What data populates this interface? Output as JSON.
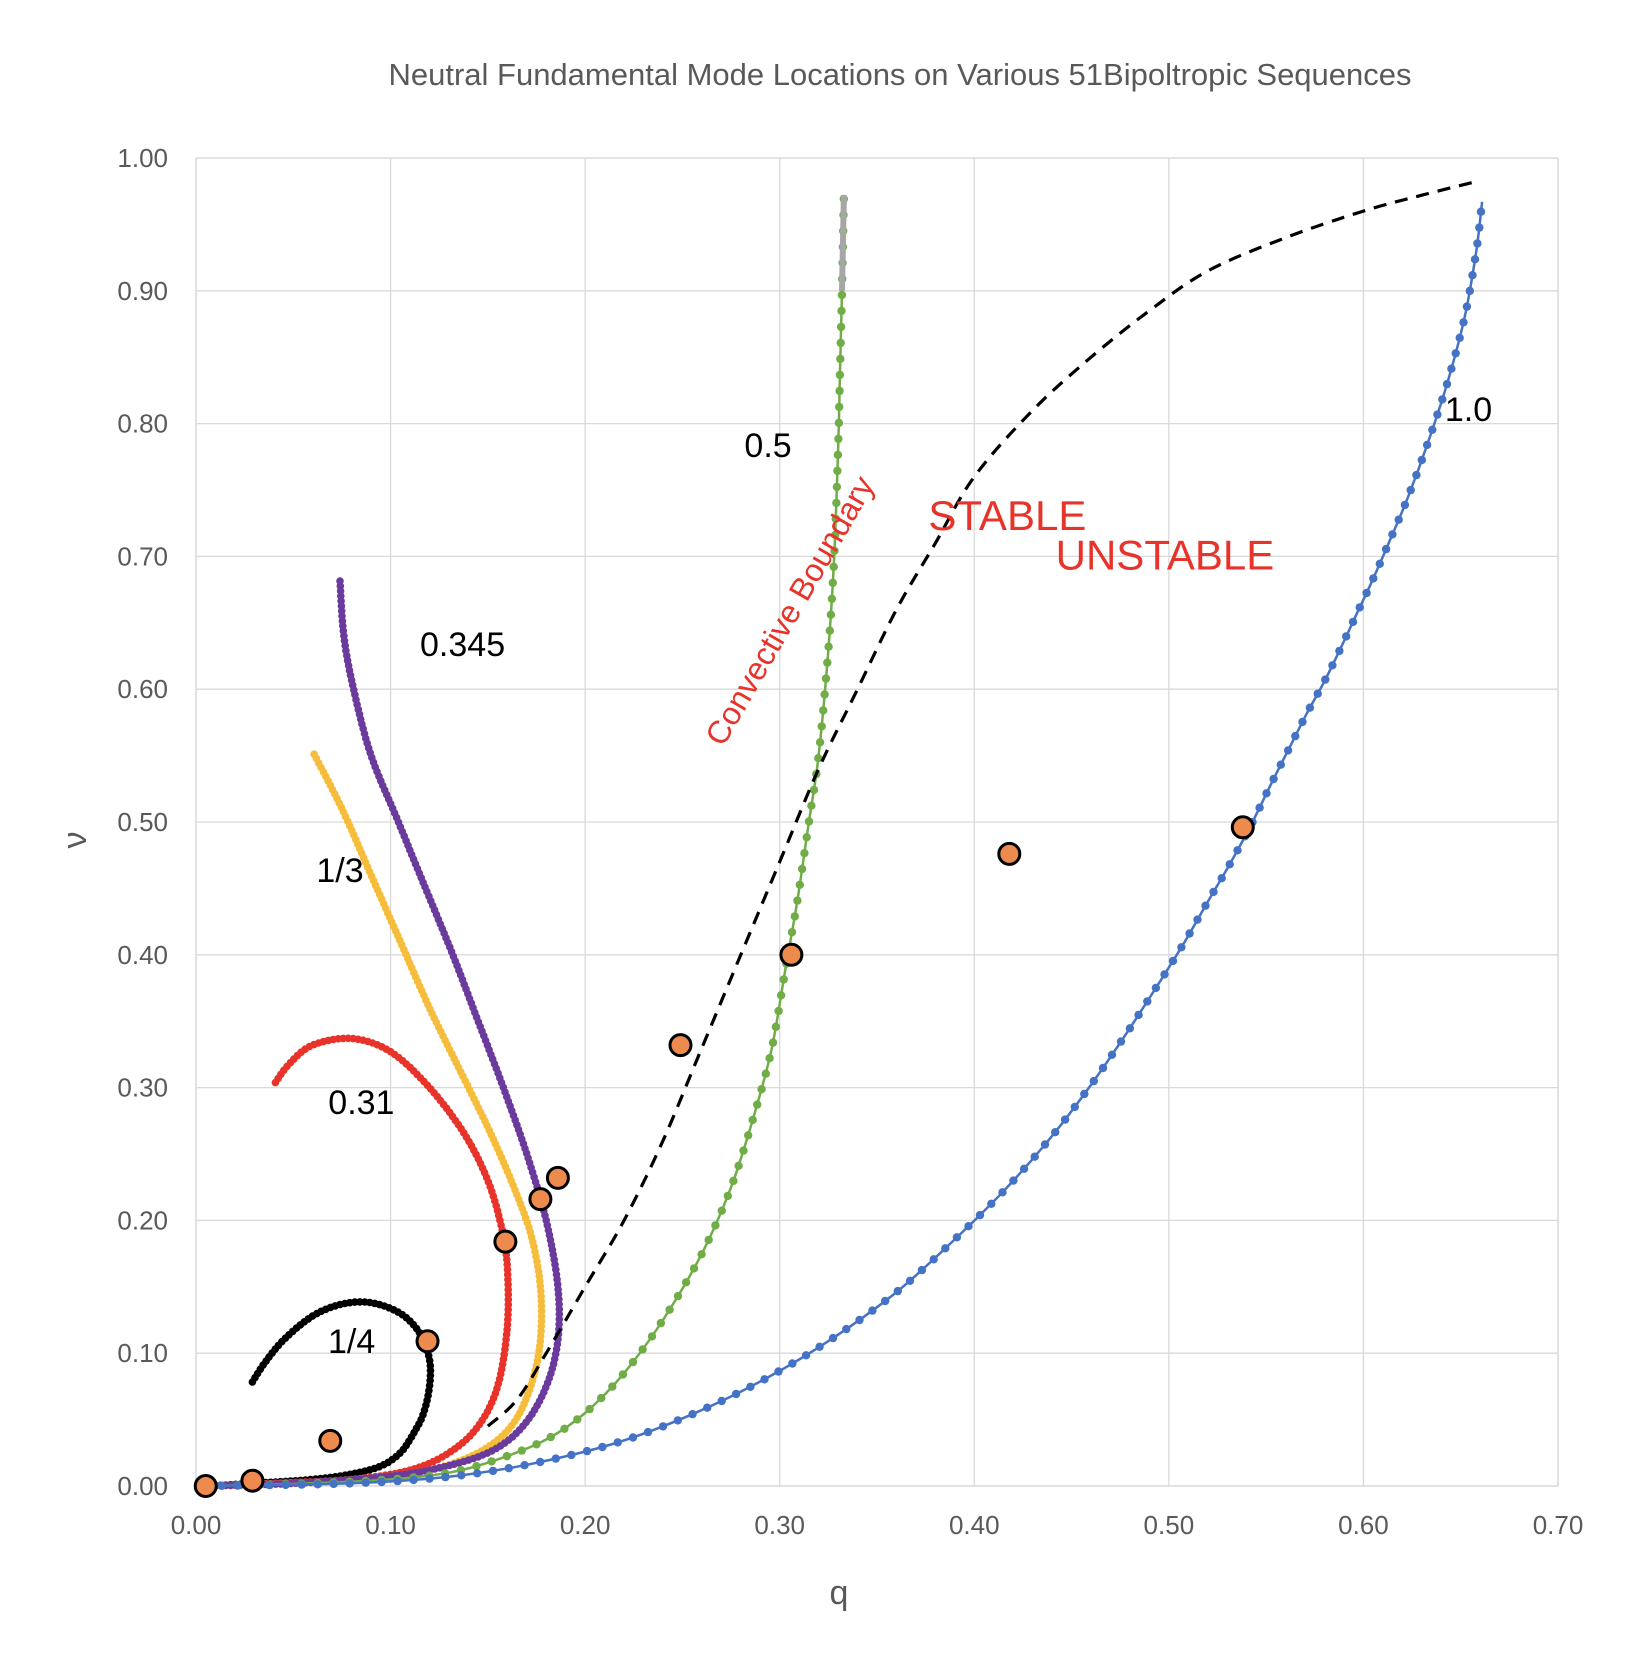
{
  "chart_data": {
    "type": "scatter",
    "title": "Neutral Fundamental Mode Locations on Various 51Bipoltropic Sequences",
    "xlabel": "q",
    "ylabel": "ν",
    "xlim": [
      0,
      0.7
    ],
    "ylim": [
      0,
      1.0
    ],
    "x_ticks": [
      "0.00",
      "0.10",
      "0.20",
      "0.30",
      "0.40",
      "0.50",
      "0.60",
      "0.70"
    ],
    "y_ticks": [
      "0.00",
      "0.10",
      "0.20",
      "0.30",
      "0.40",
      "0.50",
      "0.60",
      "0.70",
      "0.80",
      "0.90",
      "1.00"
    ],
    "grid": true,
    "series": [
      {
        "name": "1/4",
        "color": "#000000",
        "style": "dense-markers",
        "points": [
          [
            0.005,
            0.0
          ],
          [
            0.03,
            0.002
          ],
          [
            0.06,
            0.005
          ],
          [
            0.08,
            0.009
          ],
          [
            0.095,
            0.015
          ],
          [
            0.105,
            0.025
          ],
          [
            0.112,
            0.04
          ],
          [
            0.117,
            0.055
          ],
          [
            0.12,
            0.075
          ],
          [
            0.12,
            0.095
          ],
          [
            0.115,
            0.115
          ],
          [
            0.105,
            0.13
          ],
          [
            0.09,
            0.138
          ],
          [
            0.075,
            0.137
          ],
          [
            0.06,
            0.128
          ],
          [
            0.045,
            0.11
          ],
          [
            0.035,
            0.092
          ],
          [
            0.028,
            0.076
          ]
        ]
      },
      {
        "name": "0.31",
        "color": "#e8332a",
        "style": "dense-markers",
        "points": [
          [
            0.005,
            0.0
          ],
          [
            0.04,
            0.002
          ],
          [
            0.08,
            0.005
          ],
          [
            0.11,
            0.012
          ],
          [
            0.13,
            0.025
          ],
          [
            0.145,
            0.045
          ],
          [
            0.155,
            0.075
          ],
          [
            0.16,
            0.12
          ],
          [
            0.16,
            0.165
          ],
          [
            0.157,
            0.195
          ],
          [
            0.15,
            0.23
          ],
          [
            0.138,
            0.265
          ],
          [
            0.12,
            0.3
          ],
          [
            0.1,
            0.327
          ],
          [
            0.08,
            0.337
          ],
          [
            0.06,
            0.332
          ],
          [
            0.048,
            0.318
          ],
          [
            0.04,
            0.302
          ]
        ]
      },
      {
        "name": "1/3",
        "color": "#f5bd3b",
        "style": "dense-markers",
        "points": [
          [
            0.005,
            0.0
          ],
          [
            0.05,
            0.002
          ],
          [
            0.09,
            0.006
          ],
          [
            0.12,
            0.012
          ],
          [
            0.145,
            0.025
          ],
          [
            0.162,
            0.045
          ],
          [
            0.172,
            0.075
          ],
          [
            0.177,
            0.11
          ],
          [
            0.177,
            0.15
          ],
          [
            0.172,
            0.19
          ],
          [
            0.162,
            0.23
          ],
          [
            0.15,
            0.27
          ],
          [
            0.135,
            0.315
          ],
          [
            0.12,
            0.36
          ],
          [
            0.105,
            0.41
          ],
          [
            0.09,
            0.46
          ],
          [
            0.075,
            0.51
          ],
          [
            0.06,
            0.553
          ]
        ]
      },
      {
        "name": "0.345",
        "color": "#6a3a9c",
        "style": "dense-markers",
        "points": [
          [
            0.005,
            0.0
          ],
          [
            0.05,
            0.002
          ],
          [
            0.09,
            0.006
          ],
          [
            0.12,
            0.012
          ],
          [
            0.15,
            0.025
          ],
          [
            0.168,
            0.045
          ],
          [
            0.18,
            0.075
          ],
          [
            0.186,
            0.11
          ],
          [
            0.186,
            0.15
          ],
          [
            0.18,
            0.2
          ],
          [
            0.17,
            0.25
          ],
          [
            0.158,
            0.3
          ],
          [
            0.145,
            0.35
          ],
          [
            0.132,
            0.4
          ],
          [
            0.118,
            0.45
          ],
          [
            0.104,
            0.5
          ],
          [
            0.09,
            0.55
          ],
          [
            0.081,
            0.6
          ],
          [
            0.076,
            0.64
          ],
          [
            0.074,
            0.682
          ]
        ]
      },
      {
        "name": "0.5",
        "color": "#70ad47",
        "style": "line-markers",
        "points": [
          [
            0.005,
            0.0
          ],
          [
            0.06,
            0.002
          ],
          [
            0.1,
            0.005
          ],
          [
            0.13,
            0.01
          ],
          [
            0.155,
            0.02
          ],
          [
            0.18,
            0.035
          ],
          [
            0.2,
            0.055
          ],
          [
            0.22,
            0.085
          ],
          [
            0.24,
            0.125
          ],
          [
            0.26,
            0.175
          ],
          [
            0.275,
            0.225
          ],
          [
            0.287,
            0.28
          ],
          [
            0.296,
            0.33
          ],
          [
            0.303,
            0.39
          ],
          [
            0.309,
            0.44
          ],
          [
            0.315,
            0.5
          ],
          [
            0.32,
            0.55
          ],
          [
            0.325,
            0.63
          ],
          [
            0.328,
            0.7
          ],
          [
            0.33,
            0.78
          ],
          [
            0.331,
            0.84
          ],
          [
            0.332,
            0.9
          ],
          [
            0.333,
            0.972
          ]
        ]
      },
      {
        "name": "1.0",
        "color": "#4472c4",
        "style": "line-markers",
        "points": [
          [
            0.005,
            0.0
          ],
          [
            0.08,
            0.002
          ],
          [
            0.13,
            0.007
          ],
          [
            0.17,
            0.016
          ],
          [
            0.215,
            0.032
          ],
          [
            0.255,
            0.054
          ],
          [
            0.293,
            0.081
          ],
          [
            0.328,
            0.112
          ],
          [
            0.36,
            0.146
          ],
          [
            0.388,
            0.183
          ],
          [
            0.415,
            0.222
          ],
          [
            0.438,
            0.26
          ],
          [
            0.458,
            0.298
          ],
          [
            0.476,
            0.336
          ],
          [
            0.492,
            0.372
          ],
          [
            0.507,
            0.407
          ],
          [
            0.52,
            0.44
          ],
          [
            0.532,
            0.47
          ],
          [
            0.543,
            0.5
          ],
          [
            0.553,
            0.53
          ],
          [
            0.562,
            0.556
          ],
          [
            0.571,
            0.582
          ],
          [
            0.58,
            0.606
          ],
          [
            0.588,
            0.63
          ],
          [
            0.596,
            0.655
          ],
          [
            0.604,
            0.68
          ],
          [
            0.613,
            0.71
          ],
          [
            0.623,
            0.745
          ],
          [
            0.633,
            0.785
          ],
          [
            0.643,
            0.83
          ],
          [
            0.652,
            0.88
          ],
          [
            0.658,
            0.93
          ],
          [
            0.661,
            0.967
          ]
        ]
      },
      {
        "name": "Convective Boundary",
        "color": "#000000",
        "style": "dashed",
        "points": [
          [
            0.15,
            0.045
          ],
          [
            0.165,
            0.065
          ],
          [
            0.18,
            0.1
          ],
          [
            0.2,
            0.15
          ],
          [
            0.22,
            0.2
          ],
          [
            0.24,
            0.26
          ],
          [
            0.26,
            0.33
          ],
          [
            0.28,
            0.4
          ],
          [
            0.3,
            0.47
          ],
          [
            0.32,
            0.54
          ],
          [
            0.34,
            0.6
          ],
          [
            0.36,
            0.66
          ],
          [
            0.38,
            0.71
          ],
          [
            0.4,
            0.76
          ],
          [
            0.43,
            0.81
          ],
          [
            0.46,
            0.85
          ],
          [
            0.49,
            0.885
          ],
          [
            0.52,
            0.915
          ],
          [
            0.56,
            0.94
          ],
          [
            0.6,
            0.96
          ],
          [
            0.63,
            0.972
          ],
          [
            0.66,
            0.983
          ]
        ]
      }
    ],
    "neutral_points": [
      [
        0.005,
        0.0
      ],
      [
        0.029,
        0.004
      ],
      [
        0.069,
        0.034
      ],
      [
        0.119,
        0.109
      ],
      [
        0.159,
        0.184
      ],
      [
        0.177,
        0.216
      ],
      [
        0.186,
        0.232
      ],
      [
        0.249,
        0.332
      ],
      [
        0.306,
        0.4
      ],
      [
        0.418,
        0.476
      ],
      [
        0.538,
        0.496
      ]
    ],
    "neutral_point_color": "#ed8b4f",
    "series_labels": [
      {
        "text": "1/4",
        "x": 0.08,
        "y": 0.1
      },
      {
        "text": "0.31",
        "x": 0.085,
        "y": 0.28
      },
      {
        "text": "1/3",
        "x": 0.074,
        "y": 0.455
      },
      {
        "text": "0.345",
        "x": 0.137,
        "y": 0.625
      },
      {
        "text": "0.5",
        "x": 0.294,
        "y": 0.775
      },
      {
        "text": "1.0",
        "x": 0.654,
        "y": 0.802
      }
    ],
    "annotations": [
      {
        "text": "STABLE",
        "color": "#e8332a",
        "x": 0.417,
        "y": 0.72
      },
      {
        "text": "UNSTABLE",
        "color": "#e8332a",
        "x": 0.498,
        "y": 0.69
      },
      {
        "text": "Convective Boundary",
        "color": "#e8332a",
        "x": 0.31,
        "y": 0.655,
        "angle": -60
      }
    ]
  }
}
